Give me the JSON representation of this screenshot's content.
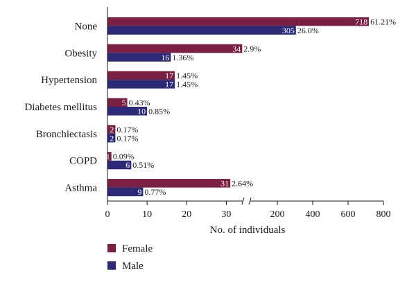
{
  "chart_data": {
    "type": "bar",
    "orientation": "horizontal",
    "categories": [
      "None",
      "Obesity",
      "Hypertension",
      "Diabetes mellitus",
      "Bronchiectasis",
      "COPD",
      "Asthma"
    ],
    "series": [
      {
        "name": "Female",
        "color": "#7b1f45",
        "values": [
          718,
          34,
          17,
          5,
          2,
          1,
          31
        ],
        "percent_labels": [
          "61.21%",
          "2.9%",
          "1.45%",
          "0.43%",
          "0.17%",
          "0.09%",
          "2.64%"
        ]
      },
      {
        "name": "Male",
        "color": "#2b2a78",
        "values": [
          305,
          16,
          17,
          10,
          2,
          6,
          9
        ],
        "percent_labels": [
          "26.0%",
          "1.36%",
          "1.45%",
          "0.85%",
          "0.17%",
          "0.51%",
          "0.77%"
        ]
      }
    ],
    "xlabel": "No. of individuals",
    "x_axis_break": true,
    "x_segments": [
      {
        "range": [
          0,
          35
        ],
        "ticks": [
          0,
          10,
          20,
          30
        ]
      },
      {
        "range": [
          35,
          800
        ],
        "ticks": [
          200,
          400,
          600,
          800
        ]
      }
    ],
    "legend_position": "bottom-left",
    "grid": false
  }
}
